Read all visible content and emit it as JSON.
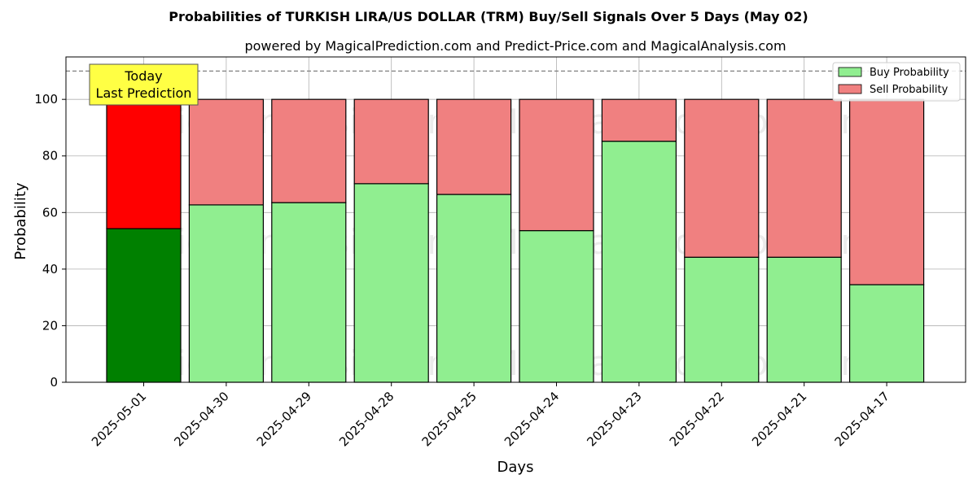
{
  "chart_data": {
    "type": "bar",
    "title": "Probabilities of TURKISH LIRA/US DOLLAR (TRM) Buy/Sell Signals Over 5 Days (May 02)",
    "subtitle": "powered by MagicalPrediction.com and Predict-Price.com and MagicalAnalysis.com",
    "xlabel": "Days",
    "ylabel": "Probability",
    "ylim": [
      0,
      115
    ],
    "yticks": [
      0,
      20,
      40,
      60,
      80,
      100
    ],
    "grid": true,
    "stacked": true,
    "categories": [
      "2025-05-01",
      "2025-04-30",
      "2025-04-29",
      "2025-04-28",
      "2025-04-25",
      "2025-04-24",
      "2025-04-23",
      "2025-04-22",
      "2025-04-21",
      "2025-04-17"
    ],
    "series": [
      {
        "name": "Buy Probability",
        "values": [
          54.3,
          62.7,
          63.5,
          70.2,
          66.4,
          53.6,
          85.2,
          44.2,
          44.2,
          34.5
        ],
        "color": "#90ee90",
        "highlight_color": "#008000"
      },
      {
        "name": "Sell Probability",
        "values": [
          45.7,
          37.3,
          36.5,
          29.8,
          33.6,
          46.4,
          14.8,
          55.8,
          55.8,
          65.5
        ],
        "color": "#f08080",
        "highlight_color": "#ff0000"
      }
    ],
    "reference_line": {
      "y": 110,
      "style": "dashed"
    },
    "legend_position": "top-right",
    "annotation": {
      "lines": [
        "Today",
        "Last Prediction"
      ],
      "color": "#ffff44"
    },
    "watermarks": [
      "MagicalAnalysis.com",
      "MagicalPrediction.com"
    ]
  }
}
